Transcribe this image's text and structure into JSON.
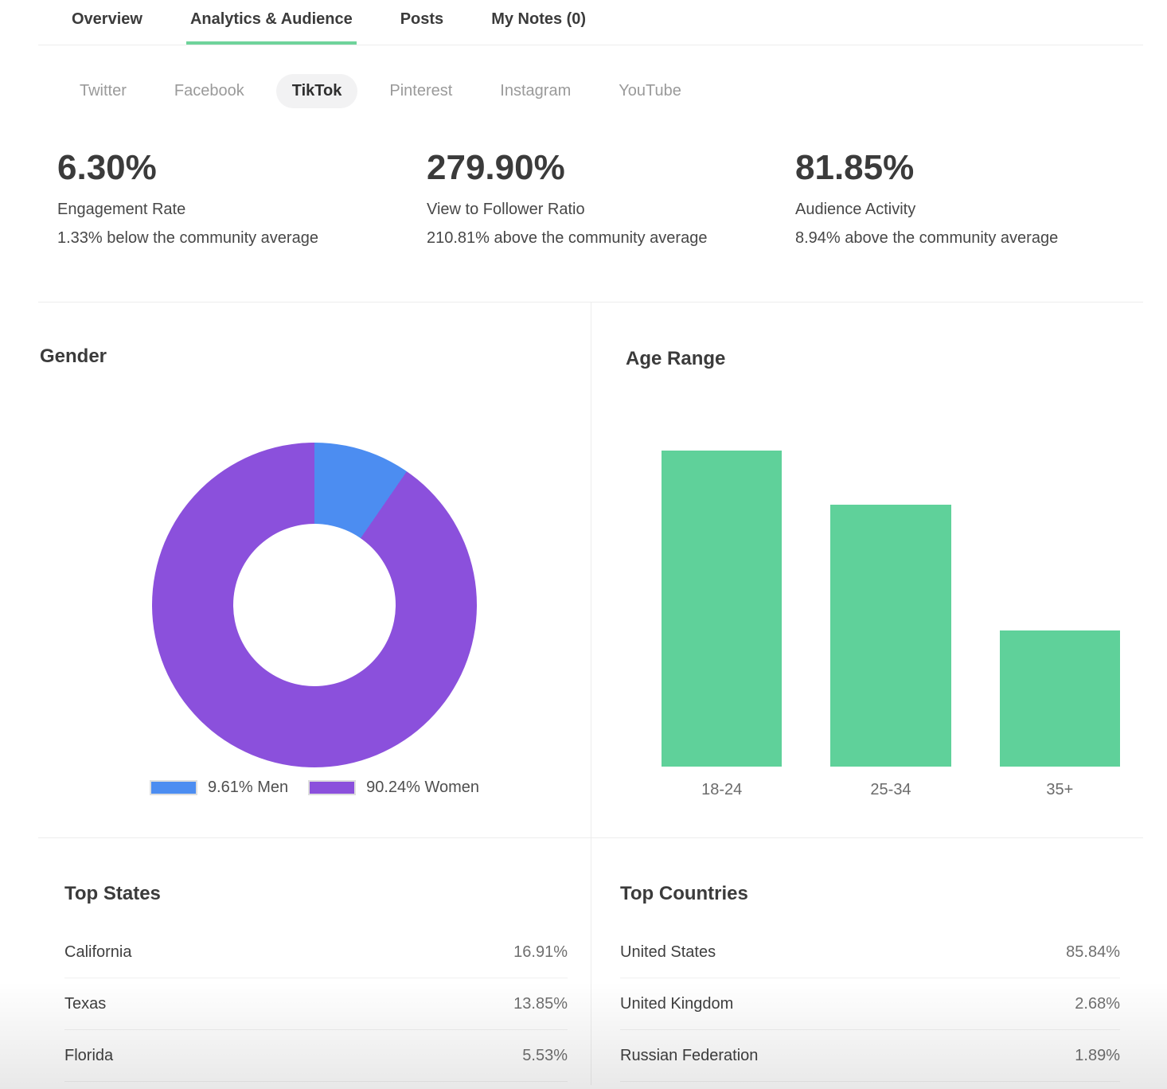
{
  "colors": {
    "accent_green": "#6FD39B",
    "bar_green": "#5FD19A",
    "men_blue": "#4C8DF1",
    "women_purple": "#8B50DC"
  },
  "header": {
    "tabs": [
      {
        "label": "Overview",
        "active": false
      },
      {
        "label": "Analytics & Audience",
        "active": true
      },
      {
        "label": "Posts",
        "active": false
      },
      {
        "label": "My Notes (0)",
        "active": false
      }
    ]
  },
  "platform_tabs": [
    {
      "label": "Twitter",
      "active": false
    },
    {
      "label": "Facebook",
      "active": false
    },
    {
      "label": "TikTok",
      "active": true
    },
    {
      "label": "Pinterest",
      "active": false
    },
    {
      "label": "Instagram",
      "active": false
    },
    {
      "label": "YouTube",
      "active": false
    }
  ],
  "kpis": [
    {
      "value": "6.30%",
      "label": "Engagement Rate",
      "comparison": "1.33% below the community average"
    },
    {
      "value": "279.90%",
      "label": "View to Follower Ratio",
      "comparison": "210.81% above the community average"
    },
    {
      "value": "81.85%",
      "label": "Audience Activity",
      "comparison": "8.94% above the community average"
    }
  ],
  "chart_data": [
    {
      "type": "pie",
      "title": "Gender",
      "donut": true,
      "slices": [
        {
          "label": "Men",
          "value": 9.61,
          "color": "#4C8DF1"
        },
        {
          "label": "Women",
          "value": 90.24,
          "color": "#8B50DC"
        }
      ],
      "legend": [
        "9.61% Men",
        "90.24% Women"
      ],
      "legend_position": "bottom"
    },
    {
      "type": "bar",
      "title": "Age Range",
      "categories": [
        "18-24",
        "25-34",
        "35+"
      ],
      "values": [
        44.0,
        36.5,
        19.0
      ],
      "color": "#5FD19A",
      "ylim": [
        0,
        50
      ],
      "grid": false,
      "note_axis": "no value labels shown; values estimated from bar heights"
    }
  ],
  "tables": [
    {
      "title": "Top States",
      "rows": [
        {
          "name": "California",
          "value": "16.91%"
        },
        {
          "name": "Texas",
          "value": "13.85%"
        },
        {
          "name": "Florida",
          "value": "5.53%"
        }
      ]
    },
    {
      "title": "Top Countries",
      "rows": [
        {
          "name": "United States",
          "value": "85.84%"
        },
        {
          "name": "United Kingdom",
          "value": "2.68%"
        },
        {
          "name": "Russian Federation",
          "value": "1.89%"
        }
      ]
    }
  ]
}
